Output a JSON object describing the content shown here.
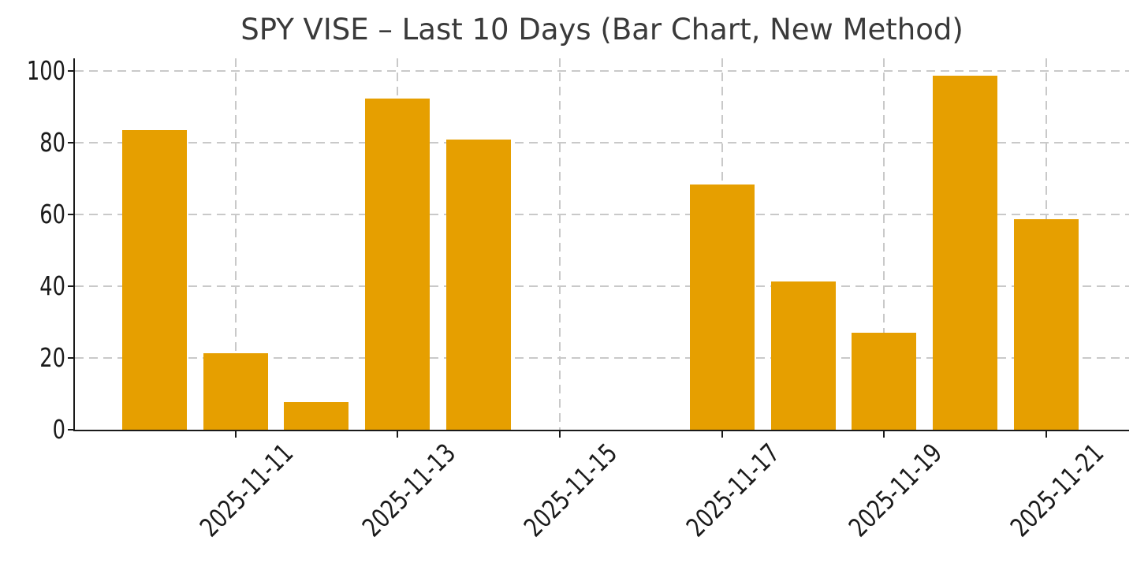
{
  "chart_data": {
    "type": "bar",
    "title": "SPY VISE – Last 10 Days (Bar Chart, New Method)",
    "categories": [
      "2025-11-10",
      "2025-11-11",
      "2025-11-12",
      "2025-11-13",
      "2025-11-14",
      "2025-11-17",
      "2025-11-18",
      "2025-11-19",
      "2025-11-20",
      "2025-11-21"
    ],
    "values": [
      83.6,
      21.3,
      7.8,
      92.3,
      80.9,
      68.4,
      41.3,
      27.0,
      98.6,
      58.6
    ],
    "xlabel": "",
    "ylabel": "",
    "x_tick_labels": [
      "2025-11-11",
      "2025-11-13",
      "2025-11-15",
      "2025-11-17",
      "2025-11-19",
      "2025-11-21"
    ],
    "y_tick_labels": [
      "0",
      "20",
      "40",
      "60",
      "80",
      "100"
    ],
    "y_ticks": [
      0,
      20,
      40,
      60,
      80,
      100
    ],
    "ylim": [
      0,
      103.5
    ],
    "xlim_days": [
      -0.98,
      12.02
    ],
    "grid": "dashed, both axes",
    "legend": "none",
    "bar_color": "#E69F00",
    "grid_color": "#c9c9c9",
    "spine_color": "#1a1a1a",
    "title_color": "#3a3a3a",
    "tick_label_color": "#1a1a1a",
    "background_color": "#ffffff",
    "note": "weekend gap: no bars for 2025-11-15 and 2025-11-16"
  }
}
